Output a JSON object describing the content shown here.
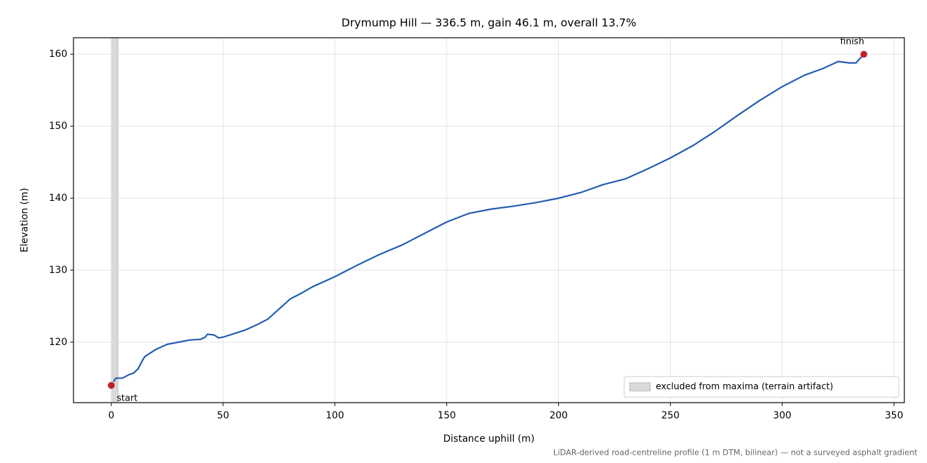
{
  "chart_data": {
    "type": "line",
    "title": "Drymump Hill — 336.5 m, gain 46.1 m, overall 13.7%",
    "xlabel": "Distance uphill (m)",
    "ylabel": "Elevation (m)",
    "footnote": "LiDAR-derived road-centreline profile (1 m DTM, bilinear) — not a surveyed asphalt gradient",
    "x": [
      1,
      2,
      5,
      8,
      10,
      12,
      14,
      15,
      20,
      25,
      30,
      35,
      40,
      42,
      43,
      46,
      48,
      50,
      55,
      60,
      65,
      70,
      75,
      80,
      85,
      90,
      100,
      110,
      120,
      130,
      140,
      150,
      160,
      170,
      180,
      190,
      200,
      210,
      220,
      230,
      240,
      250,
      260,
      270,
      280,
      290,
      300,
      310,
      318,
      323,
      325,
      330,
      333,
      336.5
    ],
    "series": [
      {
        "color": "#1f5bb0",
        "values": [
          114.5,
          115.0,
          115.0,
          115.5,
          115.7,
          116.3,
          117.5,
          118.0,
          119.0,
          119.7,
          120.0,
          120.3,
          120.4,
          120.7,
          121.1,
          121.0,
          120.6,
          120.7,
          121.2,
          121.7,
          122.4,
          123.2,
          124.6,
          126.0,
          126.8,
          127.7,
          129.1,
          130.7,
          132.2,
          133.5,
          135.1,
          136.7,
          137.9,
          138.5,
          138.9,
          139.4,
          140.0,
          140.8,
          141.9,
          142.7,
          144.1,
          145.6,
          147.3,
          149.3,
          151.5,
          153.6,
          155.5,
          157.1,
          158.0,
          158.7,
          159.0,
          158.8,
          158.8,
          160.0
        ]
      }
    ],
    "points": [
      {
        "label": "start",
        "x": 0,
        "y": 114.0
      },
      {
        "label": "finish",
        "x": 336.5,
        "y": 160.0
      }
    ],
    "point_color": "#c41e2a",
    "excluded_span": {
      "label": "excluded from maxima (terrain artifact)",
      "range": [
        0,
        3
      ],
      "color": "#d9d9d9"
    },
    "legend": "lower right",
    "xlim": [
      -16.9,
      354.6
    ],
    "ylim": [
      111.6,
      162.3
    ],
    "xticks": [
      0,
      50,
      100,
      150,
      200,
      250,
      300,
      350
    ],
    "yticks": [
      120,
      130,
      140,
      150,
      160
    ],
    "grid": true
  }
}
